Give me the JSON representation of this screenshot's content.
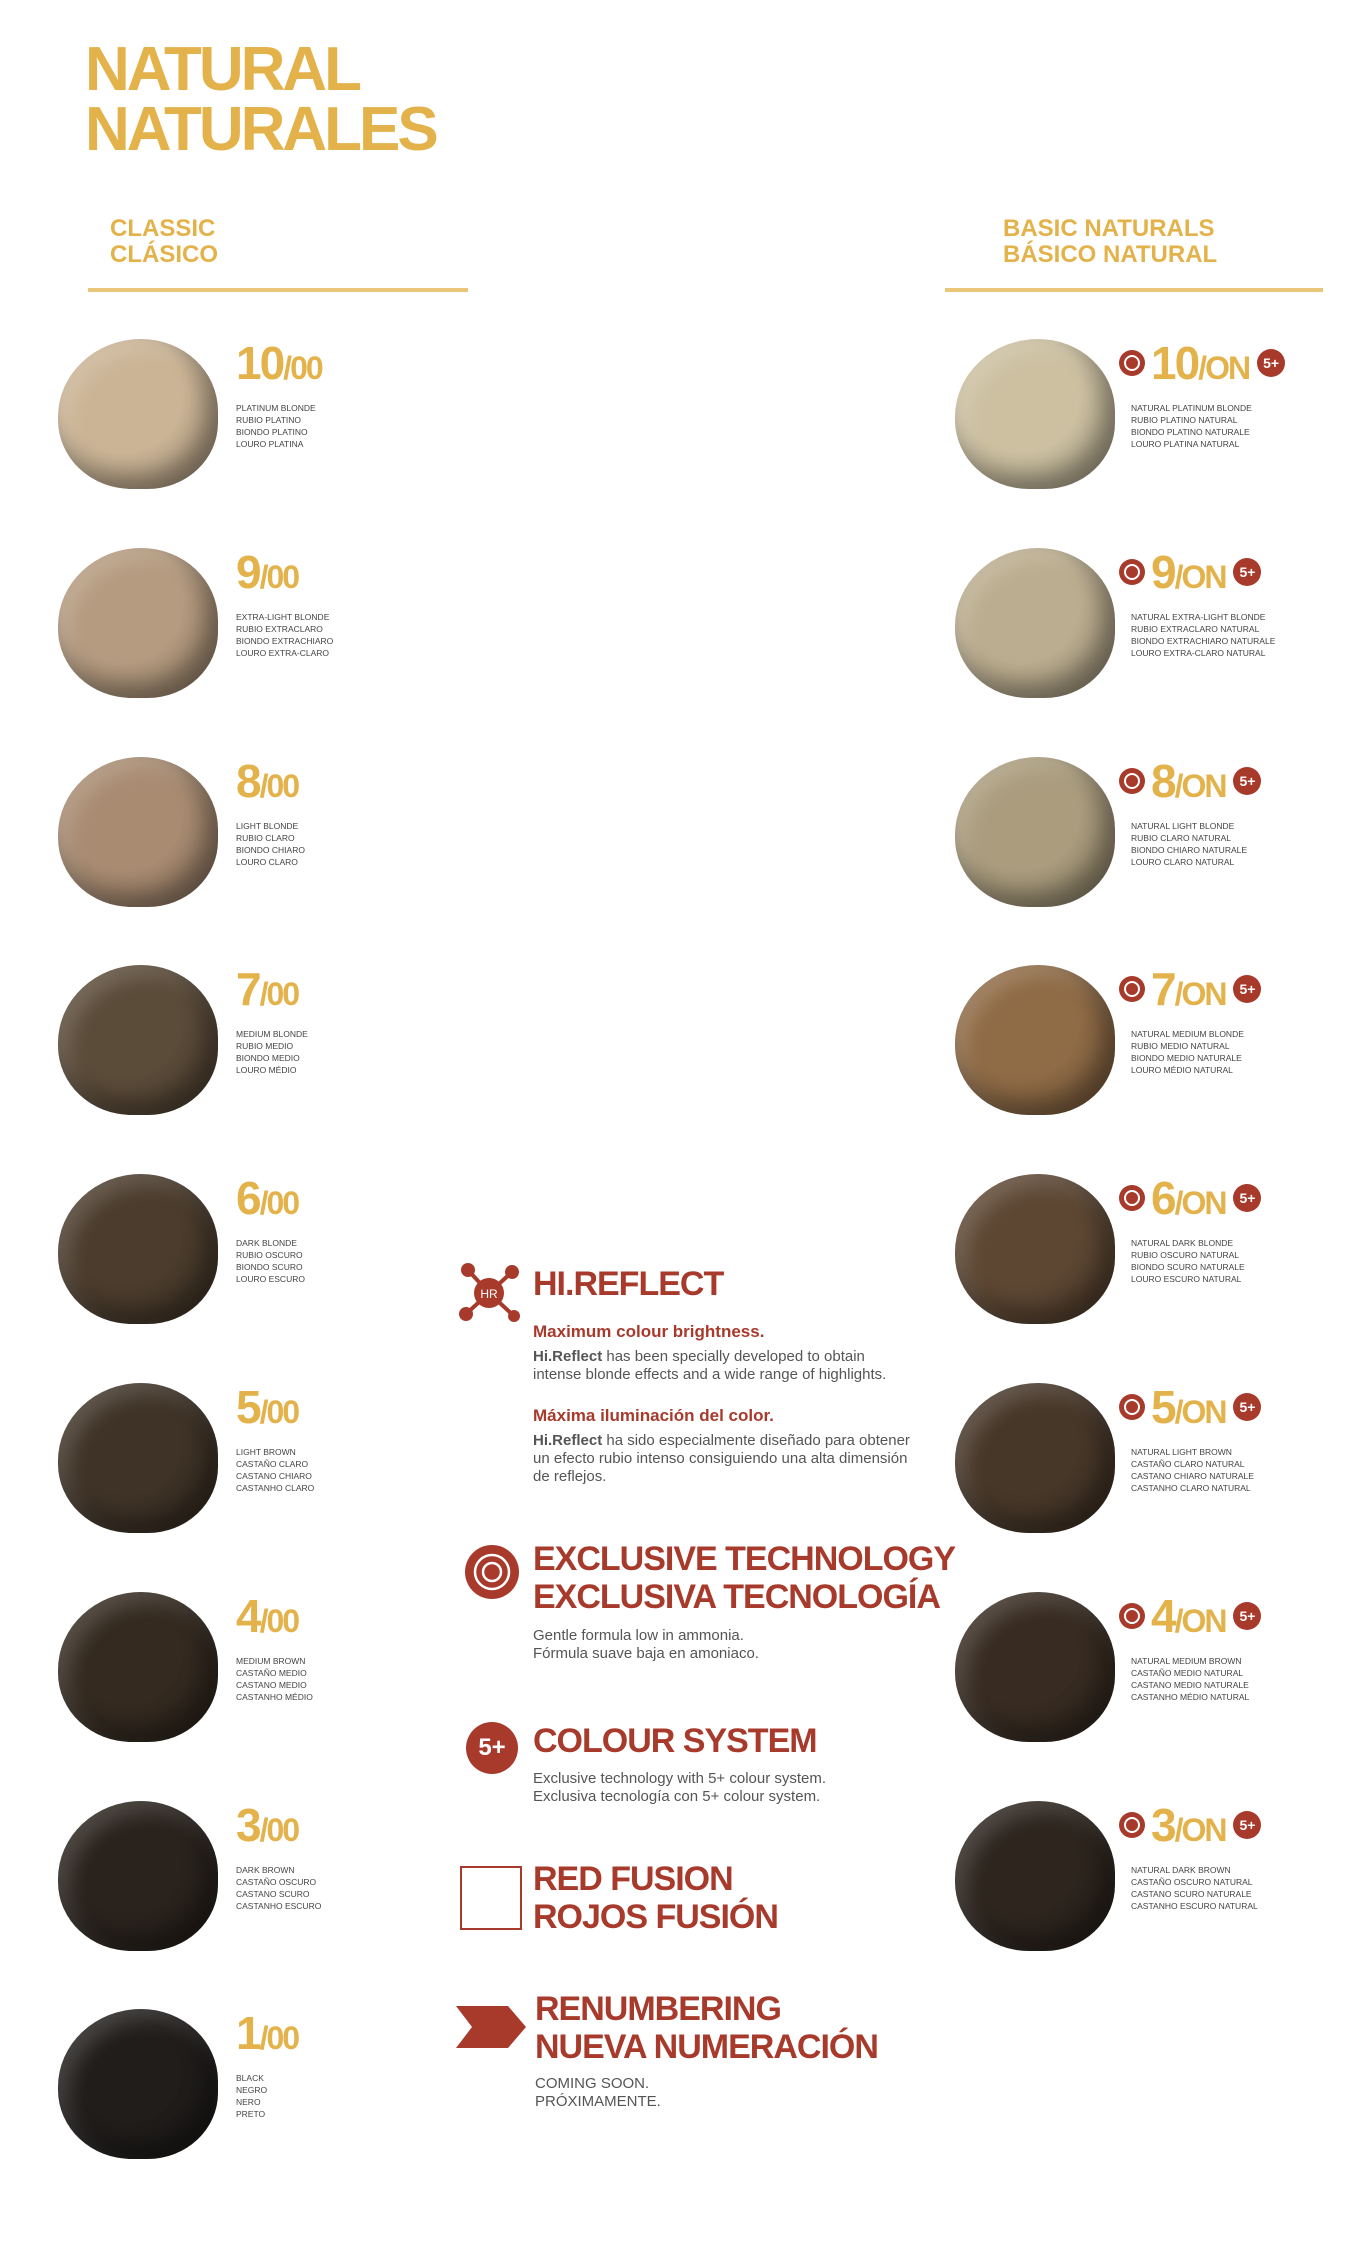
{
  "header": {
    "title": [
      "NATURAL",
      "NATURALES"
    ]
  },
  "classic": {
    "heading": [
      "CLASSIC",
      "CLÁSICO"
    ],
    "items": [
      {
        "level": "10",
        "tone": "/00",
        "names": [
          "PLATINUM BLONDE",
          "RUBIO PLATINO",
          "BIONDO PLATINO",
          "LOURO PLATINA"
        ]
      },
      {
        "level": "9",
        "tone": "/00",
        "names": [
          "EXTRA-LIGHT BLONDE",
          "RUBIO EXTRACLARO",
          "BIONDO EXTRACHIARO",
          "LOURO EXTRA-CLARO"
        ]
      },
      {
        "level": "8",
        "tone": "/00",
        "names": [
          "LIGHT BLONDE",
          "RUBIO CLARO",
          "BIONDO CHIARO",
          "LOURO CLARO"
        ]
      },
      {
        "level": "7",
        "tone": "/00",
        "names": [
          "MEDIUM BLONDE",
          "RUBIO MEDIO",
          "BIONDO MEDIO",
          "LOURO MÉDIO"
        ]
      },
      {
        "level": "6",
        "tone": "/00",
        "names": [
          "DARK BLONDE",
          "RUBIO OSCURO",
          "BIONDO SCURO",
          "LOURO ESCURO"
        ]
      },
      {
        "level": "5",
        "tone": "/00",
        "names": [
          "LIGHT BROWN",
          "CASTAÑO CLARO",
          "CASTANO CHIARO",
          "CASTANHO CLARO"
        ]
      },
      {
        "level": "4",
        "tone": "/00",
        "names": [
          "MEDIUM BROWN",
          "CASTAÑO MEDIO",
          "CASTANO MEDIO",
          "CASTANHO MÉDIO"
        ]
      },
      {
        "level": "3",
        "tone": "/00",
        "names": [
          "DARK BROWN",
          "CASTAÑO OSCURO",
          "CASTANO SCURO",
          "CASTANHO ESCURO"
        ]
      },
      {
        "level": "1",
        "tone": "/00",
        "names": [
          "BLACK",
          "NEGRO",
          "NERO",
          "PRETO"
        ]
      }
    ]
  },
  "basic": {
    "heading": [
      "BASIC NATURALS",
      "BÁSICO NATURAL"
    ],
    "items": [
      {
        "level": "10",
        "tone": "/ON",
        "badge": "5+",
        "names": [
          "NATURAL PLATINUM BLONDE",
          "RUBIO PLATINO NATURAL",
          "BIONDO PLATINO NATURALE",
          "LOURO PLATINA NATURAL"
        ]
      },
      {
        "level": "9",
        "tone": "/ON",
        "badge": "5+",
        "names": [
          "NATURAL EXTRA-LIGHT BLONDE",
          "RUBIO EXTRACLARO NATURAL",
          "BIONDO EXTRACHIARO NATURALE",
          "LOURO EXTRA-CLARO NATURAL"
        ]
      },
      {
        "level": "8",
        "tone": "/ON",
        "badge": "5+",
        "names": [
          "NATURAL LIGHT BLONDE",
          "RUBIO CLARO NATURAL",
          "BIONDO CHIARO NATURALE",
          "LOURO CLARO NATURAL"
        ]
      },
      {
        "level": "7",
        "tone": "/ON",
        "badge": "5+",
        "names": [
          "NATURAL MEDIUM BLONDE",
          "RUBIO MEDIO NATURAL",
          "BIONDO MEDIO NATURALE",
          "LOURO MÉDIO NATURAL"
        ]
      },
      {
        "level": "6",
        "tone": "/ON",
        "badge": "5+",
        "names": [
          "NATURAL DARK BLONDE",
          "RUBIO OSCURO NATURAL",
          "BIONDO SCURO NATURALE",
          "LOURO ESCURO NATURAL"
        ]
      },
      {
        "level": "5",
        "tone": "/ON",
        "badge": "5+",
        "names": [
          "NATURAL LIGHT BROWN",
          "CASTAÑO CLARO NATURAL",
          "CASTANO CHIARO NATURALE",
          "CASTANHO CLARO NATURAL"
        ]
      },
      {
        "level": "4",
        "tone": "/ON",
        "badge": "5+",
        "names": [
          "NATURAL MEDIUM BROWN",
          "CASTAÑO MEDIO NATURAL",
          "CASTANO MEDIO NATURALE",
          "CASTANHO MÉDIO NATURAL"
        ]
      },
      {
        "level": "3",
        "tone": "/ON",
        "badge": "5+",
        "names": [
          "NATURAL DARK BROWN",
          "CASTAÑO OSCURO NATURAL",
          "CASTANO SCURO NATURALE",
          "CASTANHO ESCURO NATURAL"
        ]
      }
    ]
  },
  "legend": {
    "hi_reflect": {
      "icon": "HR",
      "title": "HI.REFLECT",
      "en_heading": "Maximum colour brightness.",
      "en_brand": "Hi.Reflect",
      "en_text": "has been specially developed to obtain intense blonde effects and a wide range of highlights.",
      "es_heading": "Máxima iluminación del color.",
      "es_brand": "Hi.Reflect",
      "es_text": "ha sido especialmente diseñado para obtener un efecto rubio intenso consiguiendo una alta dimensión de reflejos."
    },
    "exclusive": {
      "title": [
        "EXCLUSIVE TECHNOLOGY",
        "EXCLUSIVA TECNOLOGÍA"
      ],
      "text": [
        "Gentle formula low in ammonia.",
        "Fórmula suave baja en amoniaco."
      ]
    },
    "colour": {
      "icon": "5+",
      "title": "COLOUR SYSTEM",
      "text": [
        "Exclusive technology with 5+ colour system.",
        "Exclusiva tecnología con 5+ colour system."
      ]
    },
    "red": {
      "title": [
        "RED FUSION",
        "ROJOS FUSIÓN"
      ]
    },
    "renumbering": {
      "title": [
        "RENUMBERING",
        "NUEVA NUMERACIÓN"
      ],
      "text": [
        "COMING SOON.",
        "PRÓXIMAMENTE."
      ]
    }
  }
}
